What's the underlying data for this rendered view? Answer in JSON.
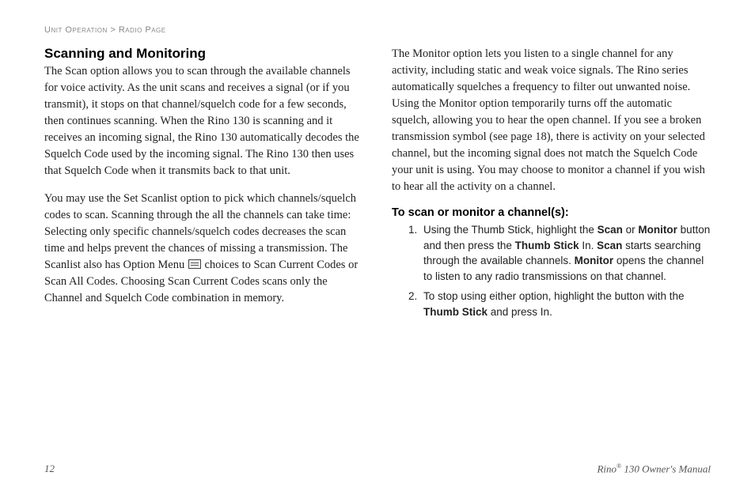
{
  "breadcrumb": {
    "section": "Unit Operation",
    "separator": ">",
    "page": "Radio Page"
  },
  "left": {
    "title": "Scanning and Monitoring",
    "p1": "The Scan option allows you to scan through the available channels for voice activity. As the unit scans and receives a signal (or if you transmit), it stops on that channel/squelch code for a few seconds, then continues scanning. When the Rino 130 is scanning and it receives an incoming signal, the Rino 130 automatically decodes the Squelch Code used by the incoming signal. The Rino 130 then uses that Squelch Code when it transmits back to that unit.",
    "p2a": "You may use the Set Scanlist option to pick which channels/squelch codes to scan. Scanning through the all the channels can take time: Selecting only specific channels/squelch codes decreases the scan time and helps prevent the chances of missing a transmission. The Scanlist also has Option Menu ",
    "p2b": " choices to Scan Current Codes or Scan All Codes. Choosing Scan Current Codes scans only the Channel and Squelch Code combination in memory."
  },
  "right": {
    "p1": "The Monitor option lets you listen to a single channel for any activity, including static and weak voice signals. The Rino series automatically squelches a frequency to filter out unwanted noise. Using the Monitor option temporarily turns off the automatic squelch, allowing you to hear the open channel. If you see a broken transmission symbol (see page 18), there is activity on your selected channel, but the incoming signal does not match the Squelch Code your unit is using. You may choose to monitor a channel if you wish to hear all the activity on a channel.",
    "subhead": "To scan or monitor a channel(s):",
    "steps": [
      {
        "t1": "Using the Thumb Stick, highlight the ",
        "b1": "Scan",
        "t2": " or ",
        "b2": "Monitor",
        "t3": " button and then press the ",
        "b3": "Thumb Stick",
        "t4": " In. ",
        "b4": "Scan",
        "t5": " starts searching through the available channels. ",
        "b5": "Monitor",
        "t6": " opens the channel to listen to any radio transmissions on that channel."
      },
      {
        "t1": "To stop using either option, highlight the button with the ",
        "b1": "Thumb Stick",
        "t2": " and press In."
      }
    ]
  },
  "footer": {
    "pagenum": "12",
    "product_a": "Rino",
    "product_reg": "®",
    "product_b": " 130 Owner's Manual"
  },
  "colors": {
    "text": "#222222",
    "breadcrumb": "#888888",
    "footer": "#555555"
  },
  "fonts": {
    "body_family": "Georgia, Times New Roman, serif",
    "ui_family": "Arial, Helvetica, sans-serif",
    "body_size_pt": 11,
    "title_size_pt": 13,
    "breadcrumb_size_pt": 8
  }
}
